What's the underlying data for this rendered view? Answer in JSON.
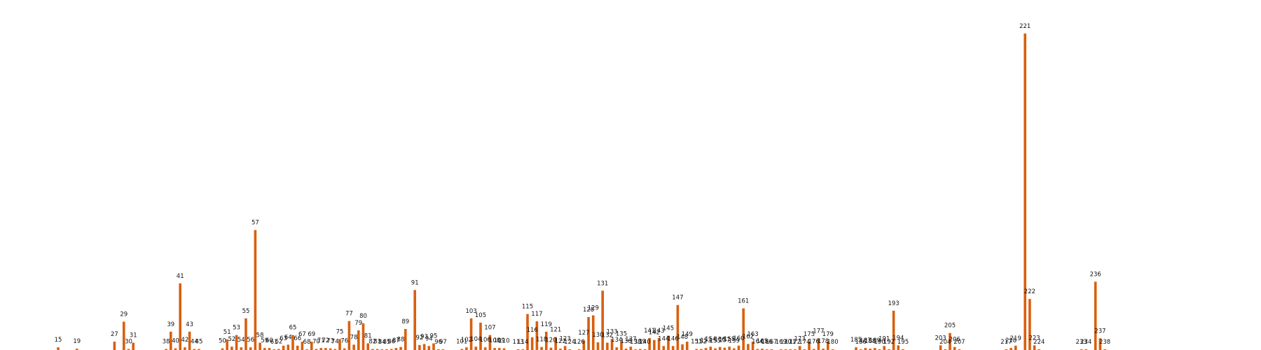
{
  "chart_data": {
    "type": "bar",
    "title": "",
    "xlabel": "",
    "ylabel": "",
    "grid": false,
    "legend": "none",
    "bar_color": "#d95f0e",
    "ylim": [
      0,
      100
    ],
    "bars": [
      {
        "label": "15",
        "value": 0.8
      },
      {
        "label": "19",
        "value": 0.4
      },
      {
        "label": "27",
        "value": 2.5
      },
      {
        "label": "29",
        "value": 8.5
      },
      {
        "label": "30",
        "value": 0.3
      },
      {
        "label": "31",
        "value": 2.2
      },
      {
        "label": "38",
        "value": 0.3
      },
      {
        "label": "39",
        "value": 5.5
      },
      {
        "label": "40",
        "value": 0.5
      },
      {
        "label": "41",
        "value": 20
      },
      {
        "label": "42",
        "value": 0.8
      },
      {
        "label": "43",
        "value": 5.5
      },
      {
        "label": "44",
        "value": 0.3
      },
      {
        "label": "45",
        "value": 0.3
      },
      {
        "label": "50",
        "value": 0.5
      },
      {
        "label": "51",
        "value": 3.2
      },
      {
        "label": "52",
        "value": 1.0
      },
      {
        "label": "53",
        "value": 4.5
      },
      {
        "label": "54",
        "value": 0.8
      },
      {
        "label": "55",
        "value": 9.5
      },
      {
        "label": "56",
        "value": 0.8
      },
      {
        "label": "57",
        "value": 36
      },
      {
        "label": "58",
        "value": 2.2
      },
      {
        "label": "59",
        "value": 0.6
      },
      {
        "label": "60",
        "value": 0.6
      },
      {
        "label": "61",
        "value": 0.2
      },
      {
        "label": "62",
        "value": 0.3
      },
      {
        "label": "63",
        "value": 1.3
      },
      {
        "label": "64",
        "value": 1.6
      },
      {
        "label": "65",
        "value": 4.5
      },
      {
        "label": "66",
        "value": 1.3
      },
      {
        "label": "67",
        "value": 2.5
      },
      {
        "label": "68",
        "value": 0.2
      },
      {
        "label": "69",
        "value": 2.5
      },
      {
        "label": "70",
        "value": 0.3
      },
      {
        "label": "71",
        "value": 0.6
      },
      {
        "label": "72",
        "value": 0.6
      },
      {
        "label": "73",
        "value": 0.5
      },
      {
        "label": "74",
        "value": 0.3
      },
      {
        "label": "75",
        "value": 3.3
      },
      {
        "label": "76",
        "value": 0.5
      },
      {
        "label": "77",
        "value": 8.7
      },
      {
        "label": "78",
        "value": 1.6
      },
      {
        "label": "79",
        "value": 5.9
      },
      {
        "label": "80",
        "value": 8.0
      },
      {
        "label": "81",
        "value": 2.0
      },
      {
        "label": "82",
        "value": 0.3
      },
      {
        "label": "83",
        "value": 0.3
      },
      {
        "label": "84",
        "value": 0.1
      },
      {
        "label": "85",
        "value": 0.2
      },
      {
        "label": "86",
        "value": 0.3
      },
      {
        "label": "87",
        "value": 0.6
      },
      {
        "label": "88",
        "value": 0.9
      },
      {
        "label": "89",
        "value": 6.3
      },
      {
        "label": "91",
        "value": 18
      },
      {
        "label": "92",
        "value": 1.5
      },
      {
        "label": "93",
        "value": 1.8
      },
      {
        "label": "94",
        "value": 1.2
      },
      {
        "label": "95",
        "value": 2.0
      },
      {
        "label": "96",
        "value": 0.2
      },
      {
        "label": "97",
        "value": 0.1
      },
      {
        "label": "101",
        "value": 0.3
      },
      {
        "label": "102",
        "value": 0.8
      },
      {
        "label": "103",
        "value": 9.5
      },
      {
        "label": "104",
        "value": 1.0
      },
      {
        "label": "105",
        "value": 8.2
      },
      {
        "label": "106",
        "value": 0.8
      },
      {
        "label": "107",
        "value": 4.5
      },
      {
        "label": "108",
        "value": 0.6
      },
      {
        "label": "109",
        "value": 0.6
      },
      {
        "label": "110",
        "value": 0.5
      },
      {
        "label": "113",
        "value": 0.1
      },
      {
        "label": "114",
        "value": 0.1
      },
      {
        "label": "115",
        "value": 10.8
      },
      {
        "label": "116",
        "value": 3.8
      },
      {
        "label": "117",
        "value": 8.6
      },
      {
        "label": "118",
        "value": 0.9
      },
      {
        "label": "119",
        "value": 5.5
      },
      {
        "label": "120",
        "value": 0.7
      },
      {
        "label": "121",
        "value": 3.9
      },
      {
        "label": "122",
        "value": 0.4
      },
      {
        "label": "123",
        "value": 1.2
      },
      {
        "label": "124",
        "value": 0.1
      },
      {
        "label": "126",
        "value": 0.2
      },
      {
        "label": "127",
        "value": 2.9
      },
      {
        "label": "128",
        "value": 9.9
      },
      {
        "label": "129",
        "value": 10.4
      },
      {
        "label": "130",
        "value": 2.3
      },
      {
        "label": "131",
        "value": 17.8
      },
      {
        "label": "132",
        "value": 2.2
      },
      {
        "label": "133",
        "value": 3.3
      },
      {
        "label": "134",
        "value": 0.8
      },
      {
        "label": "135",
        "value": 2.6
      },
      {
        "label": "136",
        "value": 0.4
      },
      {
        "label": "137",
        "value": 1.0
      },
      {
        "label": "138",
        "value": 0.1
      },
      {
        "label": "139",
        "value": 0.3
      },
      {
        "label": "140",
        "value": 0.1
      },
      {
        "label": "141",
        "value": 3.6
      },
      {
        "label": "142",
        "value": 3.0
      },
      {
        "label": "143",
        "value": 3.6
      },
      {
        "label": "144",
        "value": 1.2
      },
      {
        "label": "145",
        "value": 4.3
      },
      {
        "label": "146",
        "value": 1.2
      },
      {
        "label": "147",
        "value": 13.5
      },
      {
        "label": "148",
        "value": 1.7
      },
      {
        "label": "149",
        "value": 2.5
      },
      {
        "label": "151",
        "value": 0.3
      },
      {
        "label": "152",
        "value": 0.3
      },
      {
        "label": "153",
        "value": 0.6
      },
      {
        "label": "154",
        "value": 1.0
      },
      {
        "label": "155",
        "value": 0.5
      },
      {
        "label": "156",
        "value": 0.9
      },
      {
        "label": "157",
        "value": 0.7
      },
      {
        "label": "158",
        "value": 1.0
      },
      {
        "label": "159",
        "value": 0.5
      },
      {
        "label": "160",
        "value": 1.3
      },
      {
        "label": "161",
        "value": 12.5
      },
      {
        "label": "162",
        "value": 1.8
      },
      {
        "label": "163",
        "value": 2.5
      },
      {
        "label": "164",
        "value": 0.3
      },
      {
        "label": "165",
        "value": 0.4
      },
      {
        "label": "166",
        "value": 0.1
      },
      {
        "label": "167",
        "value": 0.1
      },
      {
        "label": "169",
        "value": 0.2
      },
      {
        "label": "170",
        "value": 0.2
      },
      {
        "label": "171",
        "value": 0.2
      },
      {
        "label": "172",
        "value": 0.1
      },
      {
        "label": "173",
        "value": 1.2
      },
      {
        "label": "174",
        "value": 0.2
      },
      {
        "label": "175",
        "value": 2.5
      },
      {
        "label": "176",
        "value": 0.3
      },
      {
        "label": "177",
        "value": 3.5
      },
      {
        "label": "178",
        "value": 0.4
      },
      {
        "label": "179",
        "value": 2.5
      },
      {
        "label": "180",
        "value": 0.1
      },
      {
        "label": "185",
        "value": 0.8
      },
      {
        "label": "186",
        "value": 0.1
      },
      {
        "label": "187",
        "value": 0.6
      },
      {
        "label": "188",
        "value": 0.4
      },
      {
        "label": "189",
        "value": 0.6
      },
      {
        "label": "190",
        "value": 0.1
      },
      {
        "label": "191",
        "value": 1.2
      },
      {
        "label": "192",
        "value": 0.2
      },
      {
        "label": "193",
        "value": 11.8
      },
      {
        "label": "194",
        "value": 1.4
      },
      {
        "label": "195",
        "value": 0.1
      },
      {
        "label": "203",
        "value": 1.4
      },
      {
        "label": "204",
        "value": 0.1
      },
      {
        "label": "205",
        "value": 5.1
      },
      {
        "label": "206",
        "value": 0.9
      },
      {
        "label": "207",
        "value": 0.1
      },
      {
        "label": "217",
        "value": 0.1
      },
      {
        "label": "218",
        "value": 0.6
      },
      {
        "label": "219",
        "value": 1.3
      },
      {
        "label": "221",
        "value": 95
      },
      {
        "label": "222",
        "value": 15.3
      },
      {
        "label": "223",
        "value": 1.4
      },
      {
        "label": "224",
        "value": 0.1
      },
      {
        "label": "233",
        "value": 0.1
      },
      {
        "label": "234",
        "value": 0.1
      },
      {
        "label": "236",
        "value": 20.5
      },
      {
        "label": "237",
        "value": 3.5
      },
      {
        "label": "238",
        "value": 0.2
      }
    ]
  }
}
